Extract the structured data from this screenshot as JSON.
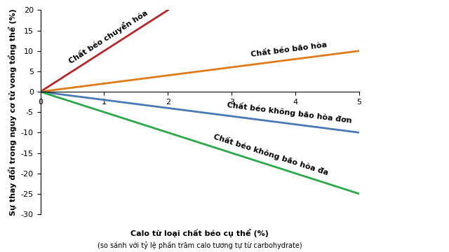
{
  "chart_data": {
    "type": "line",
    "y_label": "Sự thay đổi trong nguy cơ tử vong tổng thể (%)",
    "x_label": "Calo từ loại chất béo cụ thể (%)",
    "note": "(so sánh với tỷ lệ phần trăm calo tương tự từ carbohydrate)",
    "xlim": [
      0,
      5
    ],
    "xticks": [
      0,
      1,
      2,
      3,
      4,
      5
    ],
    "ylim": [
      -30,
      20
    ],
    "yticks": [
      -30,
      -25,
      -20,
      -15,
      -10,
      -5,
      0,
      5,
      10,
      15,
      20
    ],
    "grid": false,
    "series": [
      {
        "name": "Chất béo chuyển hóa",
        "color": "#b8262b",
        "x": [
          0,
          2
        ],
        "values": [
          0,
          20
        ]
      },
      {
        "name": "Chất béo bão hòa",
        "color": "#e07b1a",
        "x": [
          0,
          5
        ],
        "values": [
          0,
          10
        ]
      },
      {
        "name": "Chất béo không bão hòa đơn",
        "color": "#4a7ab5",
        "x": [
          0,
          5
        ],
        "values": [
          0,
          -10
        ]
      },
      {
        "name": "Chất béo không bão hòa đa",
        "color": "#2aa84a",
        "x": [
          0,
          5
        ],
        "values": [
          0,
          -25
        ]
      }
    ]
  }
}
